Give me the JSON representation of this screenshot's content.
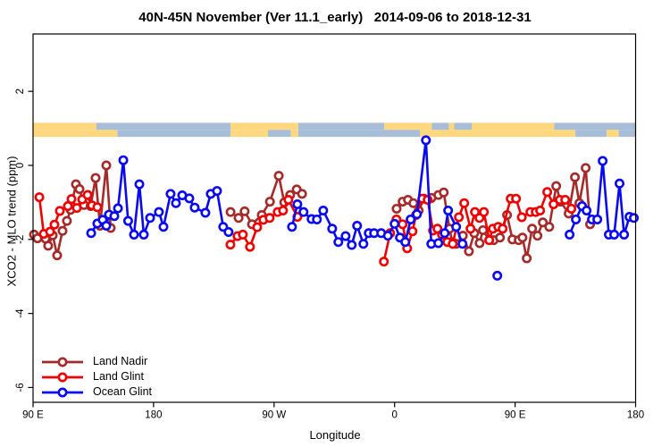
{
  "title": "40N-45N November (Ver 11.1_early)   2014-09-06 to 2018-12-31",
  "chart_data": {
    "type": "line",
    "title": "40N-45N November (Ver 11.1_early)   2014-09-06 to 2018-12-31",
    "xlabel": "Longitude",
    "ylabel": "XCO2 - MLO trend (ppm)",
    "grid": false,
    "legend_position": "bottom-left",
    "x_axis": {
      "note": "wrapped longitude axis starting at 90E, total span 450 degrees",
      "span_deg": 450,
      "tick_positions_deg": [
        0,
        90,
        180,
        270,
        360,
        450
      ],
      "tick_labels": [
        "90 E",
        "180",
        "90 W",
        "0",
        "90 E",
        "180"
      ]
    },
    "y_axis": {
      "tick_values": [
        2,
        0,
        -2,
        -4,
        -6
      ],
      "tick_labels": [
        "2",
        "0",
        "-2",
        "-4",
        "-6"
      ],
      "range": [
        -6.4,
        3.55
      ]
    },
    "map_strip": {
      "description": "land/ocean coastline band for 40N-45N drawn near y=+1",
      "land_color": "#FFD77E",
      "ocean_color": "#A8BDD7",
      "rows": [
        {
          "y_top": 1.15,
          "y_bottom": 0.96,
          "segments": [
            [
              0.0,
              0.105,
              "land"
            ],
            [
              0.105,
              0.328,
              "ocean"
            ],
            [
              0.328,
              0.44,
              "land"
            ],
            [
              0.44,
              0.583,
              "ocean"
            ],
            [
              0.583,
              0.662,
              "land"
            ],
            [
              0.662,
              0.69,
              "ocean"
            ],
            [
              0.69,
              0.699,
              "land"
            ],
            [
              0.699,
              0.728,
              "ocean"
            ],
            [
              0.728,
              0.865,
              "land"
            ],
            [
              0.865,
              1.0,
              "ocean"
            ]
          ]
        },
        {
          "y_top": 0.96,
          "y_bottom": 0.77,
          "segments": [
            [
              0.0,
              0.14,
              "land"
            ],
            [
              0.14,
              0.328,
              "ocean"
            ],
            [
              0.328,
              0.39,
              "land"
            ],
            [
              0.39,
              0.428,
              "ocean"
            ],
            [
              0.428,
              0.44,
              "land"
            ],
            [
              0.44,
              0.642,
              "ocean"
            ],
            [
              0.642,
              0.9,
              "land"
            ],
            [
              0.9,
              0.952,
              "ocean"
            ],
            [
              0.952,
              0.972,
              "land"
            ],
            [
              0.972,
              1.0,
              "ocean"
            ]
          ]
        }
      ]
    },
    "series": [
      {
        "name": "Land Nadir",
        "color": "#A52A2A",
        "marker": "open-circle",
        "segments": [
          [
            [
              0.7,
              -1.87
            ],
            [
              3.3,
              -1.97
            ],
            [
              9.3,
              -1.98
            ],
            [
              11.3,
              -2.17
            ],
            [
              14.7,
              -1.89
            ],
            [
              18,
              -2.43
            ],
            [
              22,
              -1.77
            ],
            [
              25.3,
              -1.5
            ],
            [
              28,
              -1.2
            ],
            [
              32,
              -0.51
            ],
            [
              34.7,
              -0.64
            ],
            [
              38,
              -1.07
            ],
            [
              41,
              -0.8
            ],
            [
              43,
              -1.1
            ],
            [
              46.7,
              -0.34
            ],
            [
              50,
              -1.63
            ],
            [
              54.7,
              0.0
            ],
            [
              58,
              -1.69
            ]
          ],
          [
            [
              147.5,
              -1.26
            ],
            [
              153.5,
              -1.42
            ],
            [
              158,
              -1.24
            ],
            [
              163.5,
              -1.59
            ],
            [
              170.8,
              -1.34
            ],
            [
              176.9,
              -0.98
            ],
            [
              183.5,
              -0.28
            ],
            [
              187.6,
              -1.0
            ],
            [
              192,
              -0.8
            ],
            [
              196.9,
              -0.65
            ],
            [
              200.9,
              -0.77
            ]
          ],
          [
            [
              271.5,
              -1.17
            ],
            [
              276,
              -0.98
            ],
            [
              280,
              -0.93
            ],
            [
              284,
              -1.02
            ],
            [
              288,
              -1.22
            ],
            [
              292,
              -0.9
            ],
            [
              297.5,
              -0.88
            ],
            [
              302.7,
              -0.8
            ],
            [
              306.7,
              -0.73
            ],
            [
              311,
              -1.71
            ],
            [
              313,
              -2.07
            ],
            [
              316,
              -2.12
            ],
            [
              321,
              -1.9
            ],
            [
              325.5,
              -2.32
            ],
            [
              329.5,
              -1.83
            ],
            [
              333.5,
              -2.1
            ],
            [
              336,
              -1.75
            ],
            [
              340.7,
              -2.02
            ],
            [
              344,
              -2.02
            ],
            [
              348.7,
              -1.95
            ],
            [
              354,
              -1.34
            ],
            [
              358,
              -2.0
            ],
            [
              362.7,
              -2.02
            ],
            [
              365.5,
              -1.95
            ],
            [
              368.7,
              -2.51
            ],
            [
              372.7,
              -1.71
            ],
            [
              376.7,
              -1.9
            ],
            [
              380.7,
              -1.54
            ],
            [
              385.5,
              -1.66
            ],
            [
              390.7,
              -0.56
            ],
            [
              394,
              -0.98
            ],
            [
              400,
              -1.3
            ],
            [
              404.7,
              -0.32
            ],
            [
              408,
              -1.02
            ],
            [
              412.7,
              -0.07
            ],
            [
              416,
              -1.59
            ]
          ]
        ]
      },
      {
        "name": "Land Glint",
        "color": "#F00000",
        "marker": "open-circle",
        "segments": [
          [
            [
              4.7,
              -0.86
            ],
            [
              8,
              -1.85
            ],
            [
              12.7,
              -1.79
            ],
            [
              16,
              -1.6
            ],
            [
              20,
              -1.23
            ],
            [
              26,
              -1.1
            ],
            [
              28.7,
              -0.91
            ],
            [
              32.7,
              -1.15
            ],
            [
              36.7,
              -0.92
            ],
            [
              40.7,
              -0.8
            ],
            [
              44,
              -1.08
            ],
            [
              48,
              -1.13
            ]
          ],
          [
            [
              147.4,
              -2.14
            ],
            [
              152.7,
              -1.91
            ],
            [
              156.7,
              -1.87
            ],
            [
              162,
              -2.2
            ],
            [
              167.4,
              -1.67
            ],
            [
              172,
              -1.47
            ],
            [
              176.7,
              -1.42
            ],
            [
              182.7,
              -1.26
            ],
            [
              186.7,
              -1.22
            ],
            [
              190.7,
              -0.93
            ],
            [
              197.4,
              -1.39
            ]
          ],
          [
            [
              262,
              -2.6
            ],
            [
              266.7,
              -1.83
            ],
            [
              271.4,
              -1.46
            ],
            [
              276,
              -1.59
            ],
            [
              279.4,
              -2.24
            ],
            [
              283.4,
              -1.78
            ],
            [
              286,
              -1.34
            ],
            [
              290.7,
              -0.9
            ],
            [
              294.7,
              -0.93
            ],
            [
              298.7,
              -1.76
            ],
            [
              302,
              -1.71
            ],
            [
              305.4,
              -1.87
            ],
            [
              309.4,
              -2.07
            ],
            [
              313.4,
              -2.12
            ],
            [
              318,
              -1.4
            ],
            [
              322,
              -1.02
            ],
            [
              326.7,
              -1.71
            ],
            [
              330,
              -1.26
            ],
            [
              333.4,
              -1.42
            ],
            [
              336.7,
              -1.26
            ],
            [
              340.7,
              -2.02
            ],
            [
              343.4,
              -1.71
            ],
            [
              347.4,
              -1.66
            ],
            [
              350.7,
              -1.71
            ],
            [
              356.7,
              -0.9
            ],
            [
              360.7,
              -0.9
            ],
            [
              365,
              -1.4
            ],
            [
              371.4,
              -1.26
            ],
            [
              375.4,
              -1.26
            ],
            [
              378.7,
              -1.22
            ],
            [
              384,
              -0.72
            ],
            [
              388.7,
              -1.05
            ],
            [
              393.4,
              -0.93
            ],
            [
              397.4,
              -0.93
            ],
            [
              402,
              -1.17
            ]
          ]
        ]
      },
      {
        "name": "Ocean Glint",
        "color": "#0A0AF0",
        "marker": "open-circle",
        "segments": [
          [
            [
              43.4,
              -1.83
            ],
            [
              48,
              -1.57
            ],
            [
              52,
              -1.47
            ],
            [
              54.7,
              -1.63
            ],
            [
              56.7,
              -1.33
            ],
            [
              60.7,
              -1.37
            ],
            [
              63.4,
              -1.16
            ],
            [
              67.4,
              0.14
            ],
            [
              71,
              -1.5
            ],
            [
              75.4,
              -1.87
            ],
            [
              79.4,
              -0.51
            ],
            [
              82.7,
              -1.87
            ],
            [
              87.4,
              -1.42
            ],
            [
              94,
              -1.26
            ],
            [
              97.4,
              -1.66
            ],
            [
              102.7,
              -0.77
            ],
            [
              106.7,
              -1.02
            ],
            [
              111.4,
              -0.81
            ],
            [
              116.7,
              -0.89
            ],
            [
              120.7,
              -1.14
            ],
            [
              128.7,
              -1.28
            ],
            [
              132.7,
              -0.77
            ],
            [
              137.4,
              -0.69
            ],
            [
              142,
              -1.66
            ],
            [
              146,
              -1.8
            ]
          ],
          [
            [
              193.4,
              -1.66
            ],
            [
              197.4,
              -1.05
            ],
            [
              202,
              -1.26
            ],
            [
              208,
              -1.45
            ],
            [
              212,
              -1.46
            ],
            [
              216.7,
              -1.22
            ],
            [
              223.4,
              -1.71
            ],
            [
              228,
              -2.07
            ],
            [
              233.4,
              -1.91
            ],
            [
              238,
              -2.15
            ],
            [
              242,
              -1.63
            ],
            [
              246.7,
              -2.12
            ],
            [
              250.7,
              -1.83
            ],
            [
              254.7,
              -1.83
            ],
            [
              260,
              -1.83
            ],
            [
              265,
              -1.9
            ],
            [
              270,
              -1.58
            ],
            [
              274,
              -1.95
            ],
            [
              278,
              -2.07
            ],
            [
              282,
              -1.46
            ],
            [
              286.7,
              -1.32
            ],
            [
              293.4,
              0.68
            ],
            [
              297.4,
              -2.12
            ],
            [
              302.7,
              -2.1
            ],
            [
              307.4,
              -1.83
            ],
            [
              310,
              -1.22
            ],
            [
              316,
              -1.66
            ],
            [
              320.7,
              -2.12
            ]
          ],
          [
            [
              346.7,
              -2.98
            ]
          ],
          [
            [
              400.7,
              -1.87
            ],
            [
              405.4,
              -1.46
            ],
            [
              410,
              -1.1
            ],
            [
              413.4,
              -1.22
            ],
            [
              417.4,
              -1.46
            ],
            [
              421.4,
              -1.46
            ],
            [
              425.4,
              0.12
            ],
            [
              430,
              -1.87
            ],
            [
              434,
              -1.87
            ],
            [
              438,
              -0.49
            ],
            [
              441.4,
              -1.87
            ],
            [
              445.4,
              -1.39
            ],
            [
              448.7,
              -1.42
            ]
          ]
        ]
      }
    ],
    "legend_entries": [
      "Land Nadir",
      "Land Glint",
      "Ocean Glint"
    ]
  }
}
